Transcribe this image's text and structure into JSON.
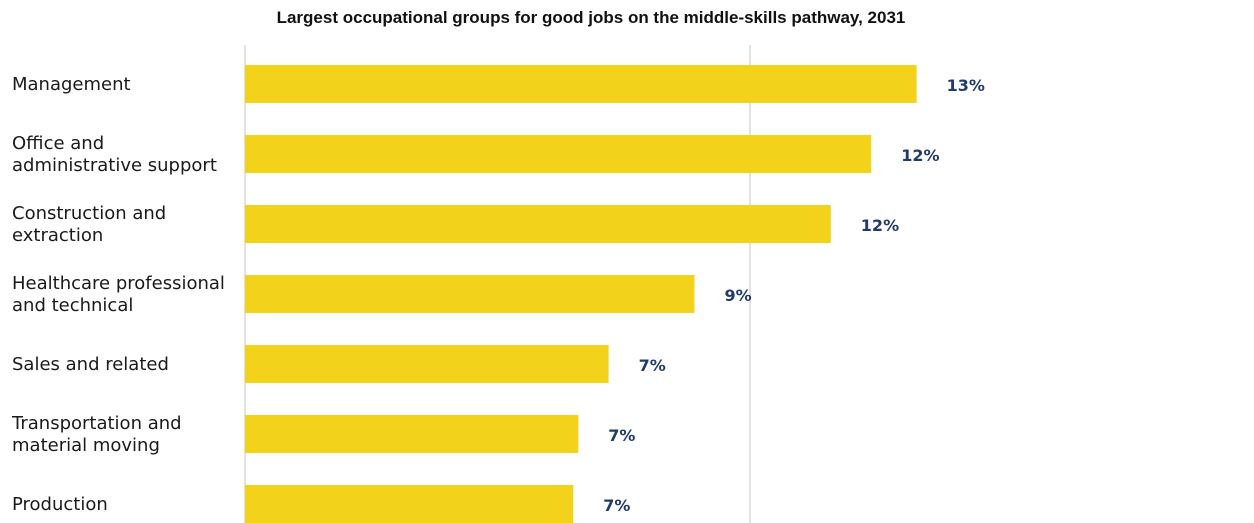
{
  "chart_data": {
    "type": "bar",
    "orientation": "horizontal",
    "title": "Largest occupational groups for good jobs on the middle-skills pathway, 2031",
    "categories": [
      [
        "Management"
      ],
      [
        "Office and",
        "administrative support"
      ],
      [
        "Construction and",
        "extraction"
      ],
      [
        "Healthcare professional",
        "and technical"
      ],
      [
        "Sales and related"
      ],
      [
        "Transportation and",
        "material moving"
      ],
      [
        "Production"
      ]
    ],
    "values": [
      13.3,
      12.4,
      11.6,
      8.9,
      7.2,
      6.6,
      6.5
    ],
    "value_labels": [
      "13%",
      "12%",
      "12%",
      "9%",
      "7%",
      "7%",
      "7%"
    ],
    "xlim": [
      0,
      20
    ],
    "grid": true,
    "colors": {
      "bar": "#F2D21B",
      "value_label": "#1F3A6B",
      "gridline": "#D9D9D9"
    }
  }
}
